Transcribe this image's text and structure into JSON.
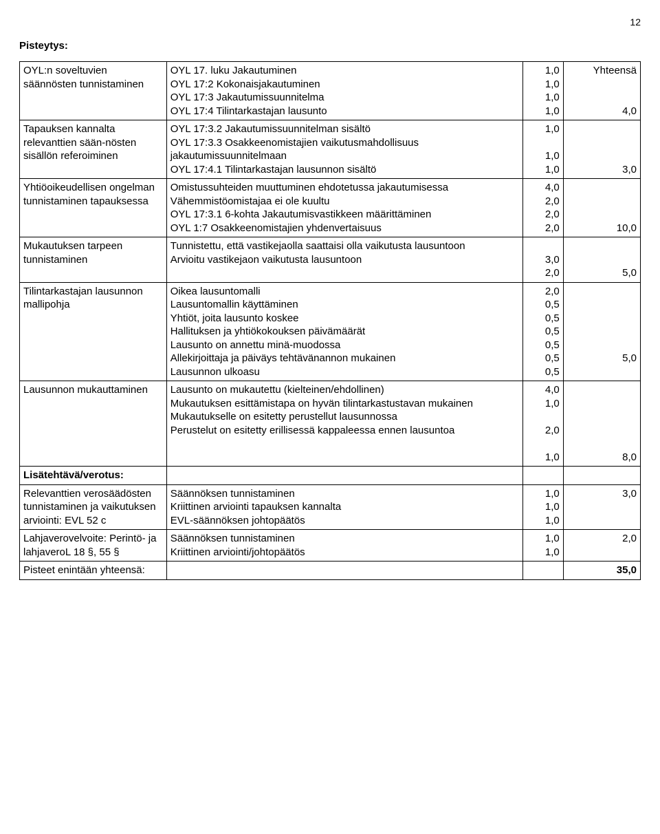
{
  "page_number": "12",
  "heading": "Pisteytys:",
  "yhteensa_label": "Yhteensä",
  "rows": [
    {
      "left": "OYL:n soveltuvien säännösten tunnistaminen",
      "mid": [
        {
          "t": "OYL 17. luku Jakautuminen",
          "v": "1,0"
        },
        {
          "t": "OYL 17:2 Kokonaisjakautuminen",
          "v": "1,0"
        },
        {
          "t": "OYL  17:3 Jakautumissuunnitelma",
          "v": "1,0"
        },
        {
          "t": "OYL 17:4 Tilintarkastajan lausunto",
          "v": "1,0"
        }
      ],
      "right": "4,0"
    },
    {
      "left": "Tapauksen kannalta relevanttien sään-nösten sisällön referoiminen",
      "mid": [
        {
          "t": "OYL 17:3.2 Jakautumissuunnitelman sisältö",
          "v": "1,0"
        },
        {
          "t": "OYL 17:3.3 Osakkeenomistajien vaikutusmahdollisuus jakautumissuunnitelmaan",
          "v": "1,0"
        },
        {
          "t": "OYL 17:4.1 Tilintarkastajan lausunnon sisältö",
          "v": "1,0"
        }
      ],
      "right": "3,0"
    },
    {
      "left": "Yhtiöoikeudellisen ongelman tunnistaminen tapauksessa",
      "mid": [
        {
          "t": "Omistussuhteiden muuttuminen ehdotetussa jakautumisessa",
          "v": "4,0"
        },
        {
          "t": "Vähemmistöomistajaa ei ole kuultu",
          "v": "2,0"
        },
        {
          "t": "OYL 17:3.1 6-kohta Jakautumisvastikkeen määrittäminen",
          "v": "2,0"
        },
        {
          "t": "OYL 1:7 Osakkeenomistajien yhdenvertaisuus",
          "v": "2,0"
        }
      ],
      "right": "10,0"
    },
    {
      "left": "Mukautuksen tarpeen tunnistaminen",
      "mid": [
        {
          "t": "Tunnistettu, että vastikejaolla saattaisi olla vaikutusta lausuntoon",
          "v": "3,0"
        },
        {
          "t": "Arvioitu vastikejaon vaikutusta lausuntoon",
          "v": "2,0"
        }
      ],
      "right": "5,0"
    },
    {
      "left": "Tilintarkastajan lausunnon mallipohja",
      "mid": [
        {
          "t": "Oikea lausuntomalli",
          "v": "2,0"
        },
        {
          "t": "Lausuntomallin käyttäminen",
          "v": "0,5"
        },
        {
          "t": "Yhtiöt, joita lausunto koskee",
          "v": "0,5"
        },
        {
          "t": "Hallituksen ja yhtiökokouksen päivämäärät",
          "v": "0,5"
        },
        {
          "t": "Lausunto on annettu minä-muodossa",
          "v": "0,5"
        },
        {
          "t": "Allekirjoittaja ja päiväys tehtävänannon mukainen",
          "v": "0,5"
        },
        {
          "t": "Lausunnon ulkoasu",
          "v": "0,5"
        }
      ],
      "right": "5,0",
      "right_padtop": true
    },
    {
      "left": "Lausunnon mukauttaminen",
      "mid": [
        {
          "t": "Lausunto on mukautettu (kielteinen/ehdollinen)",
          "v": "4,0"
        },
        {
          "t": "Mukautuksen esittämistapa on hyvän tilintarkastustavan mukainen",
          "v": "1,0",
          "val_first": true
        },
        {
          "t": "Mukautukselle on esitetty perustellut lausunnossa",
          "v": "2,0"
        },
        {
          "t": "Perustelut on esitetty erillisessä kappaleessa ennen lausuntoa",
          "v": "1,0"
        }
      ],
      "right": "8,0"
    },
    {
      "left_bold": true,
      "left": "Lisätehtävä/verotus:",
      "mid": [],
      "right": ""
    },
    {
      "left": "Relevanttien verosäädösten tunnistaminen ja vaikutuksen arviointi: EVL 52 c",
      "mid": [
        {
          "t": "Säännöksen tunnistaminen",
          "v": "1,0"
        },
        {
          "t": "Kriittinen arviointi tapauksen kannalta",
          "v": "1,0"
        },
        {
          "t": "EVL-säännöksen johtopäätös",
          "v": "1,0"
        }
      ],
      "right": "3,0",
      "right_top": true
    },
    {
      "left": "Lahjaverovelvoite: Perintö- ja lahjaveroL 18 §, 55 §",
      "mid": [
        {
          "t": "Säännöksen tunnistaminen",
          "v": "1,0"
        },
        {
          "t": "Kriittinen arviointi/johtopäätös",
          "v": "1,0"
        }
      ],
      "right": "2,0",
      "right_top": true
    },
    {
      "left": "Pisteet enintään yhteensä:",
      "mid": [],
      "right": "35,0",
      "right_bold": true
    }
  ]
}
